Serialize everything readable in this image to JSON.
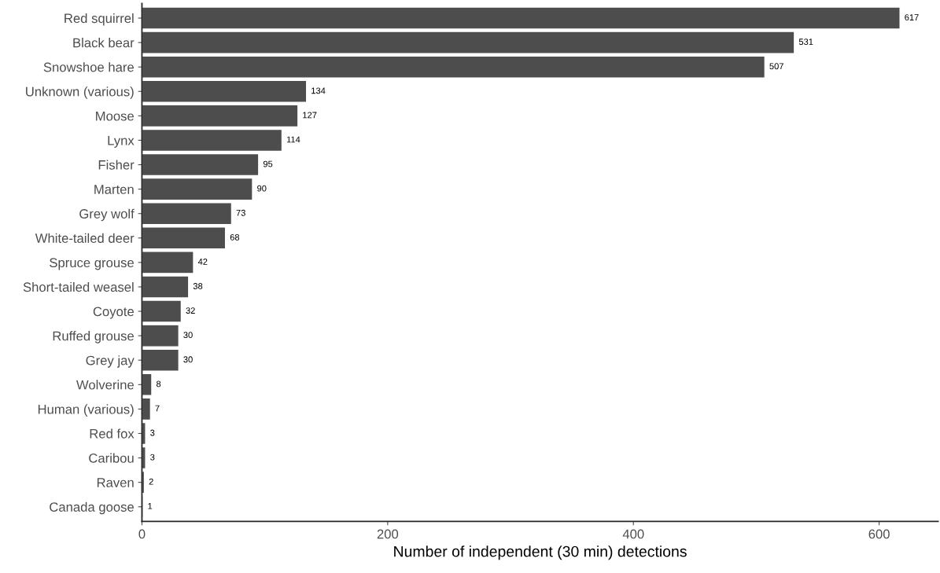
{
  "chart_data": {
    "type": "bar",
    "orientation": "horizontal",
    "xlabel": "Number of independent (30 min) detections",
    "categories": [
      "Red squirrel",
      "Black bear",
      "Snowshoe hare",
      "Unknown (various)",
      "Moose",
      "Lynx",
      "Fisher",
      "Marten",
      "Grey wolf",
      "White-tailed deer",
      "Spruce grouse",
      "Short-tailed weasel",
      "Coyote",
      "Ruffed grouse",
      "Grey jay",
      "Wolverine",
      "Human (various)",
      "Red fox",
      "Caribou",
      "Raven",
      "Canada goose"
    ],
    "values": [
      617,
      531,
      507,
      134,
      127,
      114,
      95,
      90,
      73,
      68,
      42,
      38,
      32,
      30,
      30,
      8,
      7,
      3,
      3,
      2,
      1
    ],
    "color": "#4d4d4d",
    "xlim": [
      0,
      648
    ],
    "xticks": [
      0,
      200,
      400,
      600
    ],
    "data_labels": true,
    "grid": false,
    "legend": false
  }
}
